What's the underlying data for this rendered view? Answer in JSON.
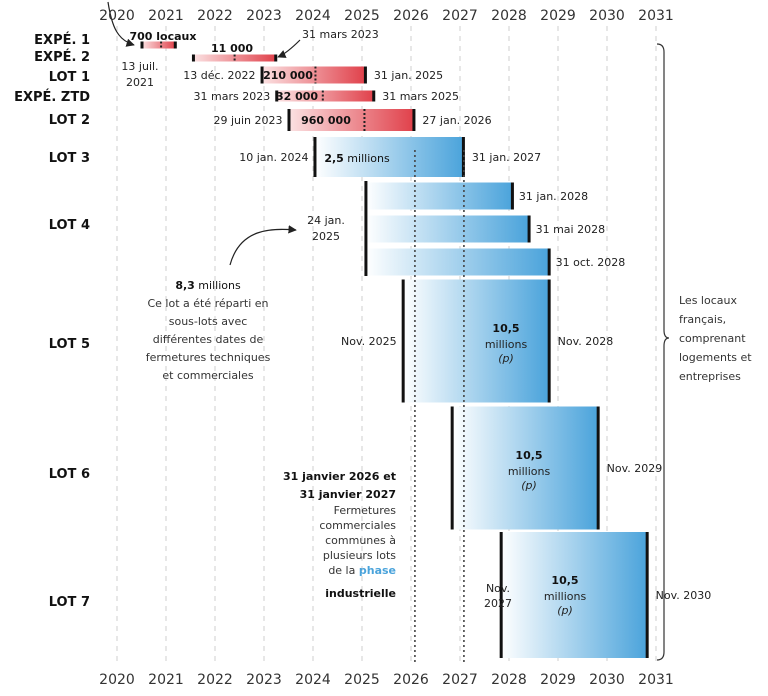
{
  "chart_data": {
    "type": "gantt",
    "x_range": [
      2020,
      2031
    ],
    "ticks": [
      "2020",
      "2021",
      "2022",
      "2023",
      "2024",
      "2025",
      "2026",
      "2027",
      "2028",
      "2029",
      "2030",
      "2031"
    ],
    "lots": [
      {
        "label": "EXPÉ. 1",
        "bars": [
          {
            "start": 2020.5,
            "end": 2021.2,
            "marker": 2020.9,
            "value": "700 locaux",
            "color": "red"
          }
        ]
      },
      {
        "label": "EXPÉ. 2",
        "bars": [
          {
            "start": 2021.55,
            "end": 2023.25,
            "marker": 2022.4,
            "value": "11 000",
            "color": "red",
            "start_label": "13 juil. 2021",
            "end_label": "31 mars 2023"
          }
        ]
      },
      {
        "label": "LOT 1",
        "bars": [
          {
            "start": 2022.95,
            "end": 2025.08,
            "marker": 2024.05,
            "value": "210 000",
            "color": "red",
            "start_label": "13 déc. 2022",
            "end_label": "31 jan. 2025"
          }
        ]
      },
      {
        "label": "EXPÉ. ZTD",
        "bars": [
          {
            "start": 2023.25,
            "end": 2025.25,
            "marker": 2024.2,
            "value": "32 000",
            "color": "red",
            "start_label": "31 mars 2023",
            "end_label": "31 mars 2025"
          }
        ]
      },
      {
        "label": "LOT 2",
        "bars": [
          {
            "start": 2023.5,
            "end": 2026.07,
            "marker": 2025.05,
            "value": "960 000",
            "color": "red",
            "start_label": "29 juin 2023",
            "end_label": "27 jan. 2026"
          }
        ]
      },
      {
        "label": "LOT 3",
        "bars": [
          {
            "start": 2024.03,
            "end": 2027.08,
            "value": "2,5",
            "value_unit": "millions",
            "color": "blue",
            "start_label": "10 jan. 2024",
            "end_label": "31 jan. 2027"
          }
        ]
      },
      {
        "label": "LOT 4",
        "start_label": "24 jan. 2025",
        "start": 2025.07,
        "value": "8,3",
        "value_unit": "millions",
        "bars": [
          {
            "start": 2025.07,
            "end": 2028.08,
            "end_label": "31 jan. 2028",
            "color": "blue"
          },
          {
            "start": 2025.07,
            "end": 2028.42,
            "end_label": "31 mai 2028",
            "color": "blue"
          },
          {
            "start": 2025.07,
            "end": 2028.83,
            "end_label": "31 oct. 2028",
            "color": "blue"
          }
        ]
      },
      {
        "label": "LOT 5",
        "bars": [
          {
            "start": 2025.83,
            "end": 2028.83,
            "value": "10,5",
            "value_unit": "millions",
            "value_note": "(p)",
            "color": "blue",
            "start_label": "Nov. 2025",
            "end_label": "Nov. 2028"
          }
        ]
      },
      {
        "label": "LOT 6",
        "bars": [
          {
            "start": 2026.83,
            "end": 2029.83,
            "value": "10,5",
            "value_unit": "millions",
            "value_note": "(p)",
            "color": "blue",
            "end_label": "Nov. 2029"
          }
        ]
      },
      {
        "label": "LOT 7",
        "bars": [
          {
            "start": 2027.83,
            "end": 2030.83,
            "value": "10,5",
            "value_unit": "millions",
            "value_note": "(p)",
            "color": "blue",
            "start_label": "Nov. 2027",
            "end_label": "Nov. 2030"
          }
        ]
      }
    ],
    "reference_lines": [
      2026.08,
      2027.08
    ],
    "annotations": {
      "lot4_note_value": "8,3",
      "lot4_note_unit": "millions",
      "lot4_note_lines": [
        "Ce lot a été réparti en",
        "sous-lots avec",
        "différentes dates de",
        "fermetures techniques",
        "et commerciales"
      ],
      "phase_title_lines": [
        "31 janvier 2026 et",
        "31 janvier 2027"
      ],
      "phase_body_lines": [
        "Fermetures",
        "commerciales",
        "communes à",
        "plusieurs lots",
        "de la "
      ],
      "phase_highlight_1": "phase",
      "phase_highlight_2": "industrielle",
      "bracket_lines": [
        "Les locaux",
        "français,",
        "comprenant",
        "logements et",
        "entreprises"
      ]
    },
    "colors": {
      "red_start": "#fbe2e3",
      "red_end": "#e0404a",
      "blue_start": "#ffffff",
      "blue_end": "#4aa3db",
      "highlight": "#4aa3db"
    }
  }
}
